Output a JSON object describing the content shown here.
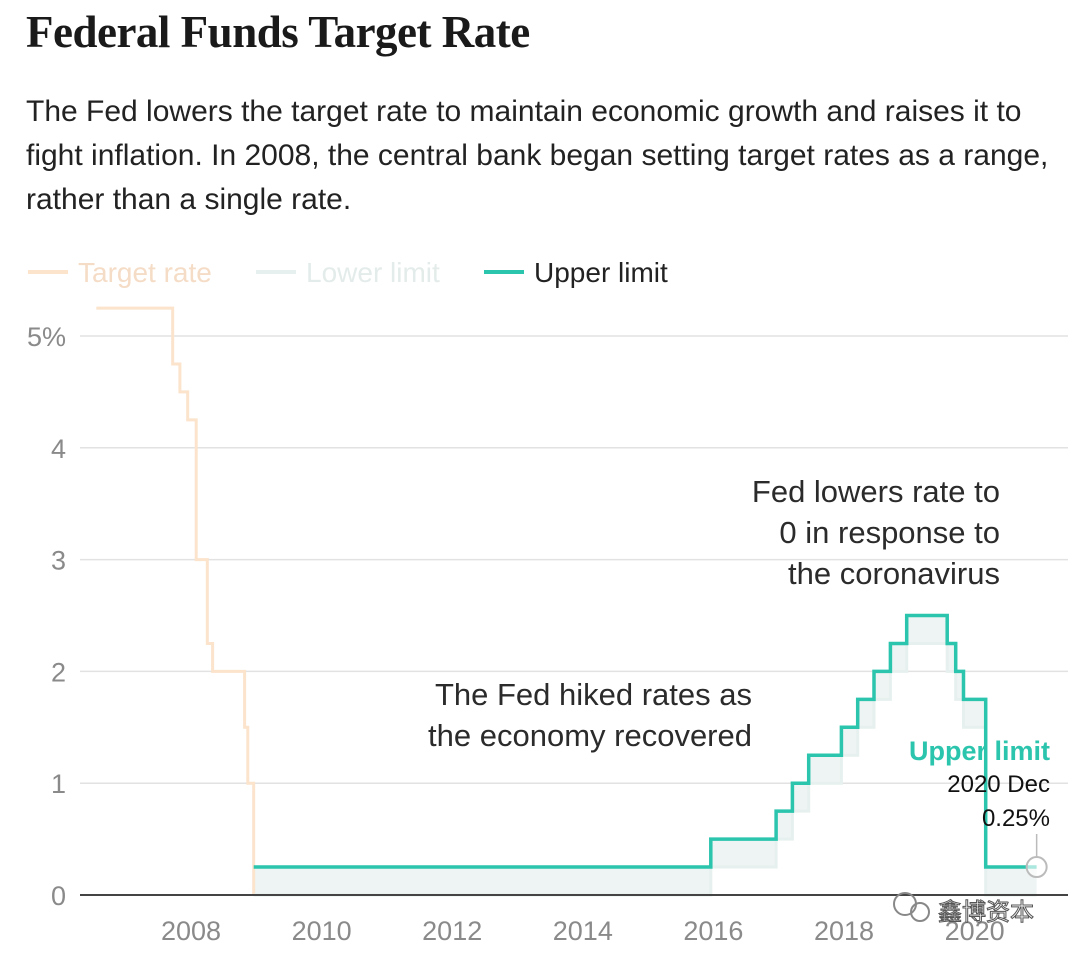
{
  "chart_data": {
    "type": "line",
    "title": "Federal Funds Target Rate",
    "subtitle": "The Fed lowers the target rate to maintain economic growth and raises it to fight inflation. In 2008, the central bank began setting target rates as a range, rather than a single rate.",
    "xlabel": "",
    "ylabel": "",
    "xlim": [
      2006.3,
      2021.0
    ],
    "ylim": [
      0,
      5.3
    ],
    "y_ticks": [
      {
        "value": 0,
        "label": "0"
      },
      {
        "value": 1,
        "label": "1"
      },
      {
        "value": 2,
        "label": "2"
      },
      {
        "value": 3,
        "label": "3"
      },
      {
        "value": 4,
        "label": "4"
      },
      {
        "value": 5,
        "label": "5%"
      }
    ],
    "x_ticks": [
      {
        "value": 2008,
        "label": "2008"
      },
      {
        "value": 2010,
        "label": "2010"
      },
      {
        "value": 2012,
        "label": "2012"
      },
      {
        "value": 2014,
        "label": "2014"
      },
      {
        "value": 2016,
        "label": "2016"
      },
      {
        "value": 2018,
        "label": "2018"
      },
      {
        "value": 2020,
        "label": "2020"
      }
    ],
    "grid": true,
    "legend_position": "top-left",
    "series": [
      {
        "name": "Target rate",
        "color": "#fbe3cc",
        "step": true,
        "points": [
          [
            2006.55,
            5.25
          ],
          [
            2007.72,
            4.75
          ],
          [
            2007.83,
            4.5
          ],
          [
            2007.95,
            4.25
          ],
          [
            2008.08,
            3.0
          ],
          [
            2008.1,
            3.0
          ],
          [
            2008.25,
            2.25
          ],
          [
            2008.33,
            2.0
          ],
          [
            2008.82,
            1.5
          ],
          [
            2008.87,
            1.0
          ],
          [
            2008.96,
            0.0
          ]
        ]
      },
      {
        "name": "Lower limit",
        "color": "#e6f0ee",
        "step": true,
        "points": [
          [
            2008.96,
            0.0
          ],
          [
            2015.96,
            0.25
          ],
          [
            2016.96,
            0.5
          ],
          [
            2017.21,
            0.75
          ],
          [
            2017.46,
            1.0
          ],
          [
            2017.96,
            1.25
          ],
          [
            2018.21,
            1.5
          ],
          [
            2018.46,
            1.75
          ],
          [
            2018.71,
            2.0
          ],
          [
            2018.96,
            2.25
          ],
          [
            2019.58,
            2.0
          ],
          [
            2019.71,
            1.75
          ],
          [
            2019.83,
            1.5
          ],
          [
            2020.17,
            0.0
          ],
          [
            2020.95,
            0.0
          ]
        ]
      },
      {
        "name": "Upper limit",
        "color": "#2bc4ad",
        "step": true,
        "points": [
          [
            2008.96,
            0.25
          ],
          [
            2015.96,
            0.5
          ],
          [
            2016.96,
            0.75
          ],
          [
            2017.21,
            1.0
          ],
          [
            2017.46,
            1.25
          ],
          [
            2017.96,
            1.5
          ],
          [
            2018.21,
            1.75
          ],
          [
            2018.46,
            2.0
          ],
          [
            2018.71,
            2.25
          ],
          [
            2018.96,
            2.5
          ],
          [
            2019.58,
            2.25
          ],
          [
            2019.71,
            2.0
          ],
          [
            2019.83,
            1.75
          ],
          [
            2020.17,
            0.25
          ],
          [
            2020.95,
            0.25
          ]
        ]
      }
    ],
    "annotations": [
      {
        "lines": [
          "Fed lowers rate to",
          "0 in response to",
          "the coronavirus"
        ]
      },
      {
        "lines": [
          "The Fed hiked rates as",
          "the economy recovered"
        ]
      }
    ],
    "tooltip": {
      "series": "Upper limit",
      "date": "2020 Dec",
      "value": 0.25,
      "value_label": "0.25%"
    }
  },
  "watermark": "鑫博资本"
}
